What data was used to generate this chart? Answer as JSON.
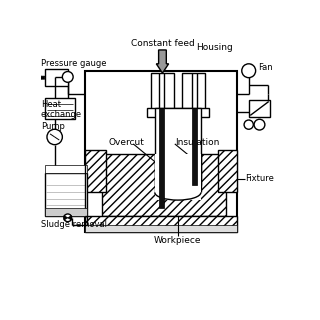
{
  "bg_color": "#ffffff",
  "lc": "#000000",
  "gray_arrow": "#888888",
  "labels": {
    "constant_feed": "Constant feed",
    "housing": "Housing",
    "pressure_gauge": "Pressure gauge",
    "fan": "Fan",
    "heat_exchange": "Heat\nexchange",
    "pump": "Pump",
    "overcut": "Overcut",
    "insulation": "Insulation",
    "fixture": "Fixture",
    "workpiece": "Workpiece",
    "sludge_removal": "Sludge removal"
  },
  "figsize": [
    3.2,
    3.2
  ],
  "dpi": 100
}
